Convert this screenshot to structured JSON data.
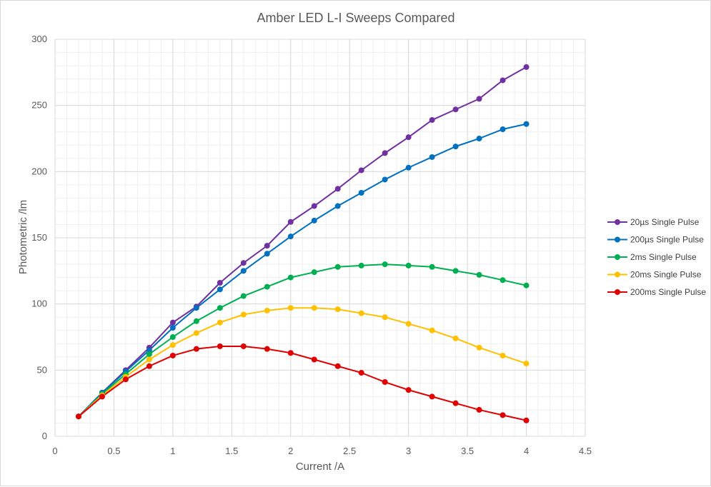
{
  "chart_data": {
    "type": "line",
    "title": "Amber LED L-I Sweeps Compared",
    "xlabel": "Current /A",
    "ylabel": "Photometric /lm",
    "xlim": [
      0,
      4.5
    ],
    "ylim": [
      0,
      300
    ],
    "x_ticks": [
      "0",
      "0.5",
      "1",
      "1.5",
      "2",
      "2.5",
      "3",
      "3.5",
      "4",
      "4.5"
    ],
    "y_ticks": [
      "0",
      "50",
      "100",
      "150",
      "200",
      "250",
      "300"
    ],
    "grid": "major and minor",
    "legend_position": "right",
    "x": [
      0.2,
      0.4,
      0.6,
      0.8,
      1.0,
      1.2,
      1.4,
      1.6,
      1.8,
      2.0,
      2.2,
      2.4,
      2.6,
      2.8,
      3.0,
      3.2,
      3.4,
      3.6,
      3.8,
      4.0
    ],
    "series": [
      {
        "name": "20µs Single Pulse",
        "color": "#7030a0",
        "values": [
          15,
          33,
          50,
          67,
          86,
          98,
          116,
          131,
          144,
          162,
          174,
          187,
          201,
          214,
          226,
          239,
          247,
          255,
          269,
          279
        ]
      },
      {
        "name": "200µs Single Pulse",
        "color": "#0070c0",
        "values": [
          15,
          33,
          49,
          65,
          82,
          97,
          111,
          125,
          138,
          151,
          163,
          174,
          184,
          194,
          203,
          211,
          219,
          225,
          232,
          236
        ]
      },
      {
        "name": "2ms Single Pulse",
        "color": "#00b050",
        "values": [
          15,
          32,
          47,
          62,
          75,
          87,
          97,
          106,
          113,
          120,
          124,
          128,
          129,
          130,
          129,
          128,
          125,
          122,
          118,
          114
        ]
      },
      {
        "name": "20ms Single Pulse",
        "color": "#ffc000",
        "values": [
          15,
          31,
          45,
          58,
          69,
          78,
          86,
          92,
          95,
          97,
          97,
          96,
          93,
          90,
          85,
          80,
          74,
          67,
          61,
          55
        ]
      },
      {
        "name": "200ms Single Pulse",
        "color": "#e00000",
        "values": [
          15,
          30,
          43,
          53,
          61,
          66,
          68,
          68,
          66,
          63,
          58,
          53,
          48,
          41,
          35,
          30,
          25,
          20,
          16,
          12
        ]
      }
    ]
  }
}
